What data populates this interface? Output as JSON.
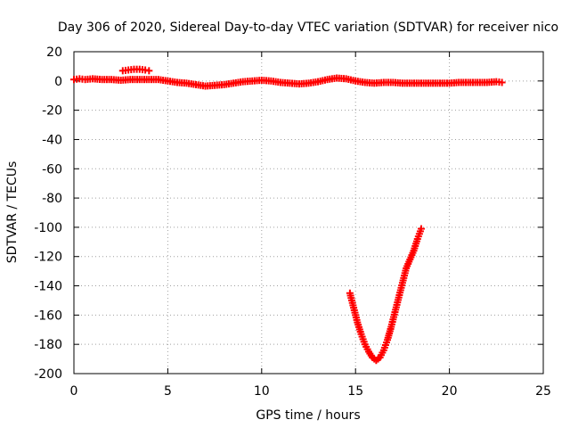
{
  "chart_data": {
    "type": "scatter",
    "title": "Day 306 of 2020, Sidereal Day-to-day VTEC variation (SDTVAR) for receiver nico",
    "xlabel": "GPS time / hours",
    "ylabel": "SDTVAR / TECUs",
    "xlim": [
      0,
      25
    ],
    "ylim": [
      -200,
      20
    ],
    "x_ticks": [
      0,
      5,
      10,
      15,
      20,
      25
    ],
    "y_ticks": [
      20,
      0,
      -20,
      -40,
      -60,
      -80,
      -100,
      -120,
      -140,
      -160,
      -180,
      -200
    ],
    "grid": true,
    "marker": "plus",
    "series": [
      {
        "name": "near-zero track",
        "color": "#ff0000",
        "points": [
          [
            0.0,
            1
          ],
          [
            0.3,
            1.5
          ],
          [
            0.6,
            1
          ],
          [
            1.0,
            1.5
          ],
          [
            1.5,
            1
          ],
          [
            2.0,
            1
          ],
          [
            2.5,
            0.5
          ],
          [
            3.0,
            1
          ],
          [
            3.5,
            1
          ],
          [
            4.0,
            1
          ],
          [
            4.5,
            1
          ],
          [
            5.0,
            0
          ],
          [
            5.5,
            -1
          ],
          [
            6.0,
            -1.5
          ],
          [
            6.5,
            -2.5
          ],
          [
            7.0,
            -3.5
          ],
          [
            7.5,
            -3
          ],
          [
            8.0,
            -2.5
          ],
          [
            8.5,
            -1.5
          ],
          [
            9.0,
            -0.5
          ],
          [
            9.5,
            0
          ],
          [
            10.0,
            0.5
          ],
          [
            10.5,
            0
          ],
          [
            11.0,
            -1
          ],
          [
            11.5,
            -1.5
          ],
          [
            12.0,
            -2
          ],
          [
            12.5,
            -1.5
          ],
          [
            13.0,
            -0.5
          ],
          [
            13.5,
            1
          ],
          [
            14.0,
            2
          ],
          [
            14.5,
            1.5
          ],
          [
            15.0,
            0
          ],
          [
            15.5,
            -1
          ],
          [
            16.0,
            -1.5
          ],
          [
            16.5,
            -1
          ],
          [
            17.0,
            -1
          ],
          [
            17.5,
            -1.5
          ],
          [
            18.0,
            -1.5
          ],
          [
            18.5,
            -1.5
          ],
          [
            19.0,
            -1.5
          ],
          [
            19.5,
            -1.5
          ],
          [
            20.0,
            -1.5
          ],
          [
            20.5,
            -1
          ],
          [
            21.0,
            -1
          ],
          [
            21.5,
            -1
          ],
          [
            22.0,
            -1
          ],
          [
            22.5,
            -0.5
          ],
          [
            22.8,
            -1
          ]
        ]
      },
      {
        "name": "short bump",
        "color": "#ff0000",
        "points": [
          [
            2.6,
            7
          ],
          [
            2.9,
            7.5
          ],
          [
            3.2,
            8
          ],
          [
            3.5,
            8
          ],
          [
            3.8,
            7.5
          ],
          [
            4.0,
            7
          ]
        ]
      },
      {
        "name": "dip",
        "color": "#ff0000",
        "points": [
          [
            14.7,
            -145
          ],
          [
            14.9,
            -155
          ],
          [
            15.1,
            -165
          ],
          [
            15.3,
            -173
          ],
          [
            15.5,
            -180
          ],
          [
            15.7,
            -185
          ],
          [
            15.9,
            -189
          ],
          [
            16.1,
            -191
          ],
          [
            16.3,
            -189
          ],
          [
            16.5,
            -184
          ],
          [
            16.7,
            -177
          ],
          [
            16.9,
            -168
          ],
          [
            17.1,
            -158
          ],
          [
            17.3,
            -148
          ],
          [
            17.5,
            -138
          ],
          [
            17.7,
            -128
          ],
          [
            17.9,
            -122
          ],
          [
            18.1,
            -116
          ],
          [
            18.3,
            -108
          ],
          [
            18.5,
            -101
          ]
        ]
      }
    ]
  }
}
